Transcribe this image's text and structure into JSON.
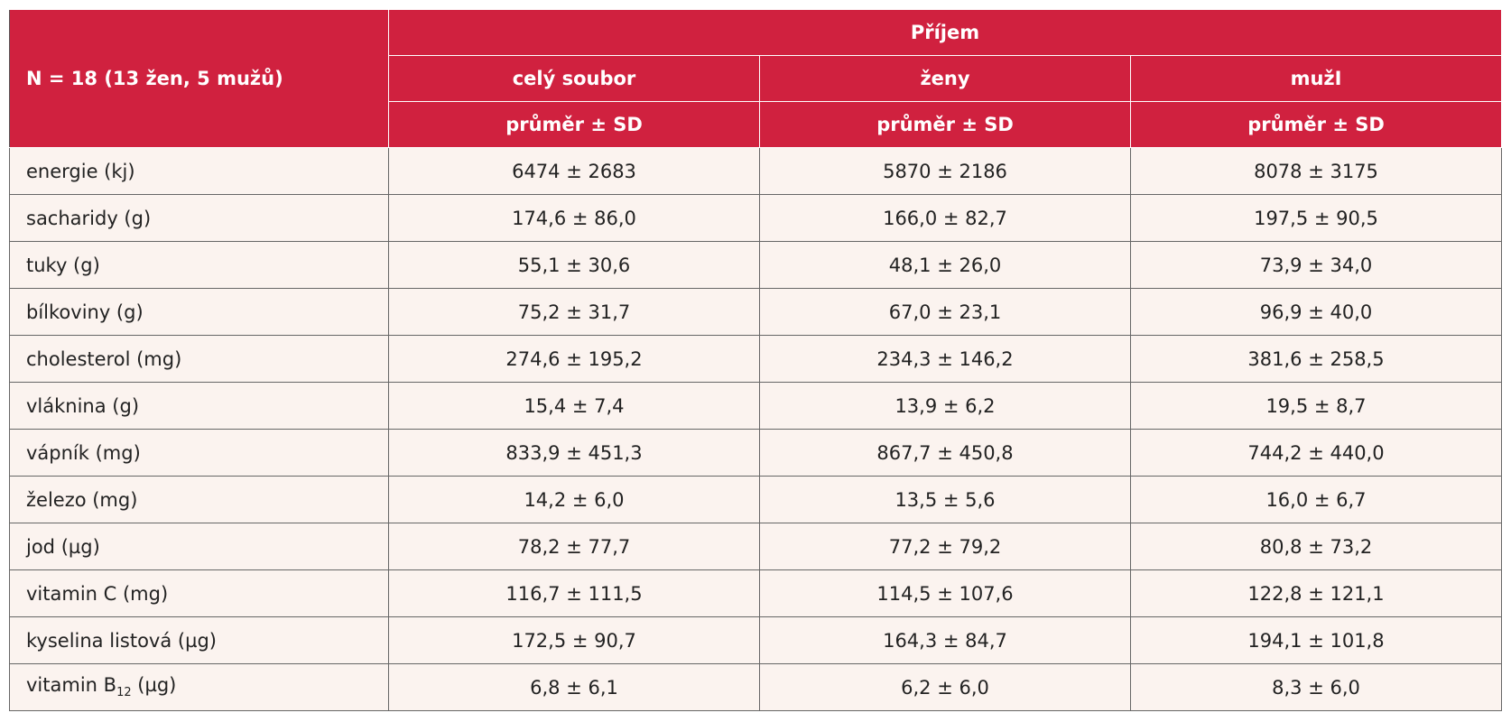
{
  "table": {
    "corner": "N = 18 (13 žen, 5 mužů)",
    "group_header": "Příjem",
    "columns": [
      "celý soubor",
      "ženy",
      "mužI"
    ],
    "subheaders": [
      "průměr ± SD",
      "průměr ± SD",
      "průměr ± SD"
    ],
    "rows": [
      {
        "label": [
          "energie (kj)"
        ],
        "cells": [
          "6474 ± 2683",
          "5870 ± 2186",
          "8078 ± 3175"
        ]
      },
      {
        "label": [
          "sacharidy (g)"
        ],
        "cells": [
          "174,6 ± 86,0",
          "166,0 ± 82,7",
          "197,5  ± 90,5"
        ]
      },
      {
        "label": [
          "tuky (g)"
        ],
        "cells": [
          "55,1 ± 30,6",
          "48,1 ± 26,0",
          "73,9 ± 34,0"
        ]
      },
      {
        "label": [
          "bílkoviny (g)"
        ],
        "cells": [
          "75,2 ± 31,7",
          "67,0 ± 23,1",
          "96,9 ± 40,0"
        ]
      },
      {
        "label": [
          "cholesterol (mg)"
        ],
        "cells": [
          "274,6 ± 195,2",
          "234,3 ± 146,2",
          "381,6 ± 258,5"
        ]
      },
      {
        "label": [
          "vláknina (g)"
        ],
        "cells": [
          "15,4 ± 7,4",
          "13,9 ± 6,2",
          "19,5 ± 8,7"
        ]
      },
      {
        "label": [
          "vápník (mg)"
        ],
        "cells": [
          "833,9 ± 451,3",
          "867,7 ± 450,8",
          "744,2 ± 440,0"
        ]
      },
      {
        "label": [
          "železo (mg)"
        ],
        "cells": [
          "14,2 ± 6,0",
          "13,5 ± 5,6",
          "16,0 ± 6,7"
        ]
      },
      {
        "label": [
          "jod (µg)"
        ],
        "cells": [
          "78,2 ± 77,7",
          "77,2 ± 79,2",
          "80,8 ± 73,2"
        ]
      },
      {
        "label": [
          "vitamin C (mg)"
        ],
        "cells": [
          "116,7 ± 111,5",
          "114,5 ± 107,6",
          "122,8 ± 121,1"
        ]
      },
      {
        "label": [
          "kyselina listová (µg)"
        ],
        "cells": [
          "172,5 ± 90,7",
          "164,3 ± 84,7",
          "194,1 ± 101,8"
        ]
      },
      {
        "label": [
          "vitamin B",
          "12",
          " (µg)"
        ],
        "cells": [
          "6,8 ± 6,1",
          "6,2 ± 6,0",
          "8,3 ± 6,0"
        ]
      }
    ]
  }
}
